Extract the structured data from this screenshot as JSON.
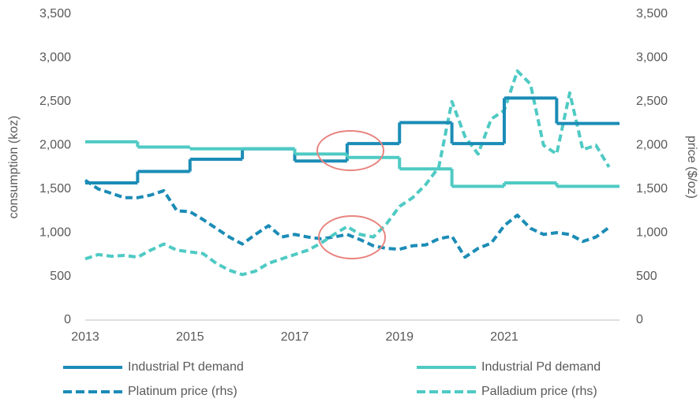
{
  "chart_data": {
    "type": "line",
    "y_label": "consumption (koz)",
    "y2_label": "price ($/oz)",
    "xlim": [
      2013,
      2023.2
    ],
    "xticks": [
      2013,
      2015,
      2017,
      2019,
      2021
    ],
    "ylim": [
      0,
      3500
    ],
    "yticks": [
      0,
      500,
      {
        "value": 1000,
        "label": "1,000"
      },
      {
        "value": 1500,
        "label": "1,500"
      },
      {
        "value": 2000,
        "label": "2,000"
      },
      {
        "value": 2500,
        "label": "2,500"
      },
      {
        "value": 3000,
        "label": "3,000"
      },
      {
        "value": 3500,
        "label": "3,500"
      }
    ],
    "y2lim": [
      0,
      3500
    ],
    "y2ticks": [
      0,
      500,
      {
        "value": 1000,
        "label": "1,000"
      },
      {
        "value": 1500,
        "label": "1,500"
      },
      {
        "value": 2000,
        "label": "2,000"
      },
      {
        "value": 2500,
        "label": "2,500"
      },
      {
        "value": 3000,
        "label": "3,000"
      },
      {
        "value": 3500,
        "label": "3,500"
      }
    ],
    "series": [
      {
        "name": "Industrial Pt demand",
        "color": "#1b8cb6",
        "style": "step",
        "x": [
          2013,
          2014,
          2015,
          2016,
          2017,
          2018,
          2019,
          2020,
          2021,
          2022
        ],
        "values": [
          1570,
          1700,
          1840,
          1960,
          1820,
          2020,
          2260,
          2020,
          2540,
          2250
        ]
      },
      {
        "name": "Industrial Pd demand",
        "color": "#4fcac4",
        "style": "step",
        "x": [
          2013,
          2014,
          2015,
          2016,
          2017,
          2018,
          2019,
          2020,
          2021,
          2022
        ],
        "values": [
          2040,
          1980,
          1960,
          1960,
          1900,
          1860,
          1730,
          1530,
          1570,
          1530
        ]
      },
      {
        "name": "Platinum price (rhs)",
        "color": "#1b8cb6",
        "style": "dashed",
        "axis": "y2",
        "x": [
          2013,
          2013.25,
          2013.5,
          2013.75,
          2014,
          2014.25,
          2014.5,
          2014.75,
          2015,
          2015.25,
          2015.5,
          2015.75,
          2016,
          2016.25,
          2016.5,
          2016.75,
          2017,
          2017.25,
          2017.5,
          2017.75,
          2018,
          2018.25,
          2018.5,
          2018.75,
          2019,
          2019.25,
          2019.5,
          2019.75,
          2020,
          2020.25,
          2020.5,
          2020.75,
          2021,
          2021.25,
          2021.5,
          2021.75,
          2022,
          2022.25,
          2022.5,
          2022.75,
          2023
        ],
        "values": [
          1600,
          1500,
          1450,
          1400,
          1400,
          1430,
          1480,
          1250,
          1240,
          1150,
          1050,
          950,
          870,
          980,
          1080,
          950,
          980,
          950,
          930,
          950,
          980,
          920,
          850,
          820,
          810,
          850,
          860,
          930,
          960,
          720,
          820,
          880,
          1080,
          1200,
          1050,
          980,
          1000,
          980,
          900,
          950,
          1060
        ]
      },
      {
        "name": "Palladium price (rhs)",
        "color": "#4fcac4",
        "style": "dashed",
        "axis": "y2",
        "x": [
          2013,
          2013.25,
          2013.5,
          2013.75,
          2014,
          2014.25,
          2014.5,
          2014.75,
          2015,
          2015.25,
          2015.5,
          2015.75,
          2016,
          2016.25,
          2016.5,
          2016.75,
          2017,
          2017.25,
          2017.5,
          2017.75,
          2018,
          2018.25,
          2018.5,
          2018.75,
          2019,
          2019.25,
          2019.5,
          2019.75,
          2020,
          2020.25,
          2020.5,
          2020.75,
          2021,
          2021.25,
          2021.5,
          2021.75,
          2022,
          2022.25,
          2022.5,
          2022.75,
          2023
        ],
        "values": [
          700,
          750,
          730,
          740,
          720,
          800,
          870,
          800,
          780,
          760,
          650,
          570,
          520,
          560,
          650,
          700,
          750,
          800,
          880,
          980,
          1070,
          980,
          950,
          1100,
          1300,
          1400,
          1550,
          1750,
          2500,
          2100,
          1900,
          2300,
          2400,
          2850,
          2700,
          2000,
          1900,
          2600,
          1950,
          2000,
          1750
        ]
      }
    ]
  }
}
